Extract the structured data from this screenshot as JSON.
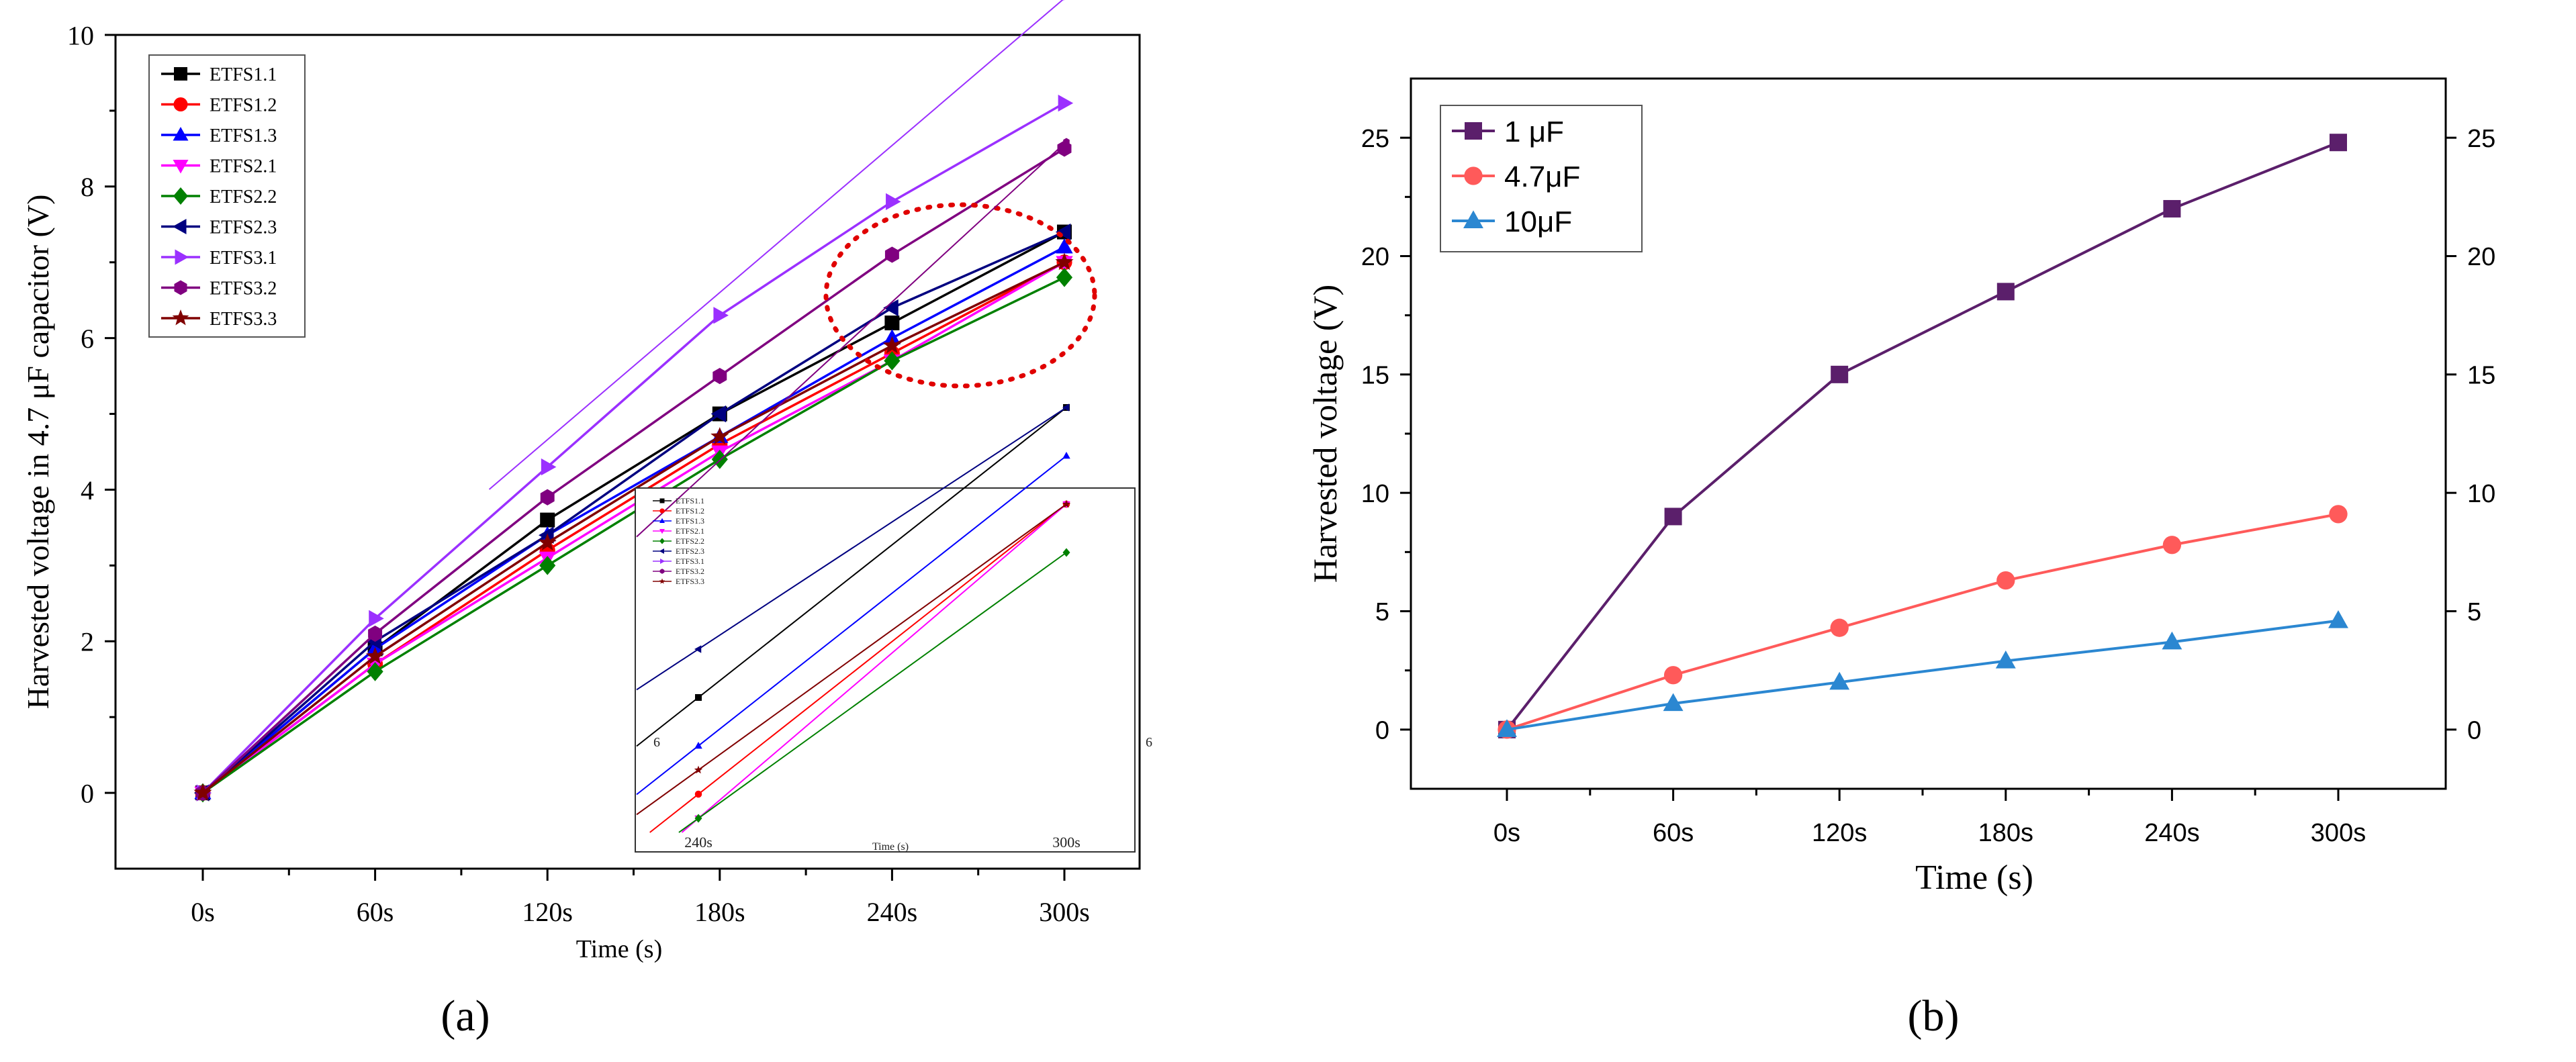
{
  "chart_data": [
    {
      "panel_label": "(a)",
      "type": "line",
      "xlabel": "Time (s)",
      "ylabel": "Harvested voltage in 4.7 μF capacitor (V)",
      "categories": [
        "0s",
        "60s",
        "120s",
        "180s",
        "240s",
        "300s"
      ],
      "ylim": [
        -1,
        10
      ],
      "yticks": [
        0,
        2,
        4,
        6,
        8,
        10
      ],
      "legend_position": "top-left",
      "series": [
        {
          "name": "ETFS1.1",
          "color": "#000000",
          "marker": "square",
          "values": [
            0,
            1.9,
            3.6,
            5.0,
            6.2,
            7.4
          ]
        },
        {
          "name": "ETFS1.2",
          "color": "#ff0000",
          "marker": "circle",
          "values": [
            0,
            1.7,
            3.2,
            4.6,
            5.8,
            7.0
          ]
        },
        {
          "name": "ETFS1.3",
          "color": "#0000ff",
          "marker": "triangle-up",
          "values": [
            0,
            1.9,
            3.4,
            4.7,
            6.0,
            7.2
          ]
        },
        {
          "name": "ETFS2.1",
          "color": "#ff00ff",
          "marker": "triangle-down",
          "values": [
            0,
            1.7,
            3.1,
            4.5,
            5.7,
            7.0
          ]
        },
        {
          "name": "ETFS2.2",
          "color": "#008000",
          "marker": "diamond",
          "values": [
            0,
            1.6,
            3.0,
            4.4,
            5.7,
            6.8
          ]
        },
        {
          "name": "ETFS2.3",
          "color": "#000080",
          "marker": "triangle-left",
          "values": [
            0,
            2.0,
            3.4,
            5.0,
            6.4,
            7.4
          ]
        },
        {
          "name": "ETFS3.1",
          "color": "#9b30ff",
          "marker": "triangle-right",
          "values": [
            0,
            2.3,
            4.3,
            6.3,
            7.8,
            9.1
          ]
        },
        {
          "name": "ETFS3.2",
          "color": "#800080",
          "marker": "hexagon",
          "values": [
            0,
            2.1,
            3.9,
            5.5,
            7.1,
            8.5
          ]
        },
        {
          "name": "ETFS3.3",
          "color": "#800000",
          "marker": "star",
          "values": [
            0,
            1.8,
            3.3,
            4.7,
            5.9,
            7.0
          ]
        }
      ],
      "inset": {
        "xlabel": "Time (s)",
        "tick_labels": [
          "240s",
          "300s"
        ],
        "ytick_label": "6",
        "ytick_label_right": "6",
        "legend": [
          "ETFS1.1",
          "ETFS1.2",
          "ETFS1.3",
          "ETFS2.1",
          "ETFS2.2",
          "ETFS2.3",
          "ETFS3.1",
          "ETFS3.2",
          "ETFS3.3"
        ]
      }
    },
    {
      "panel_label": "(b)",
      "type": "line",
      "xlabel": "Time (s)",
      "ylabel": "Harvested voltage (V)",
      "categories": [
        "0s",
        "60s",
        "120s",
        "180s",
        "240s",
        "300s"
      ],
      "ylim": [
        -2.5,
        27.5
      ],
      "yticks": [
        0,
        5,
        10,
        15,
        20,
        25
      ],
      "legend_position": "top-left",
      "series": [
        {
          "name": "1 μF",
          "color": "#5b1f6b",
          "marker": "square",
          "values": [
            0,
            9.0,
            15.0,
            18.5,
            22.0,
            24.8
          ]
        },
        {
          "name": "4.7μF",
          "color": "#ff5a5a",
          "marker": "circle",
          "values": [
            0,
            2.3,
            4.3,
            6.3,
            7.8,
            9.1
          ]
        },
        {
          "name": "10μF",
          "color": "#2b87d1",
          "marker": "triangle-up",
          "values": [
            0,
            1.1,
            2.0,
            2.9,
            3.7,
            4.6
          ]
        }
      ]
    }
  ]
}
